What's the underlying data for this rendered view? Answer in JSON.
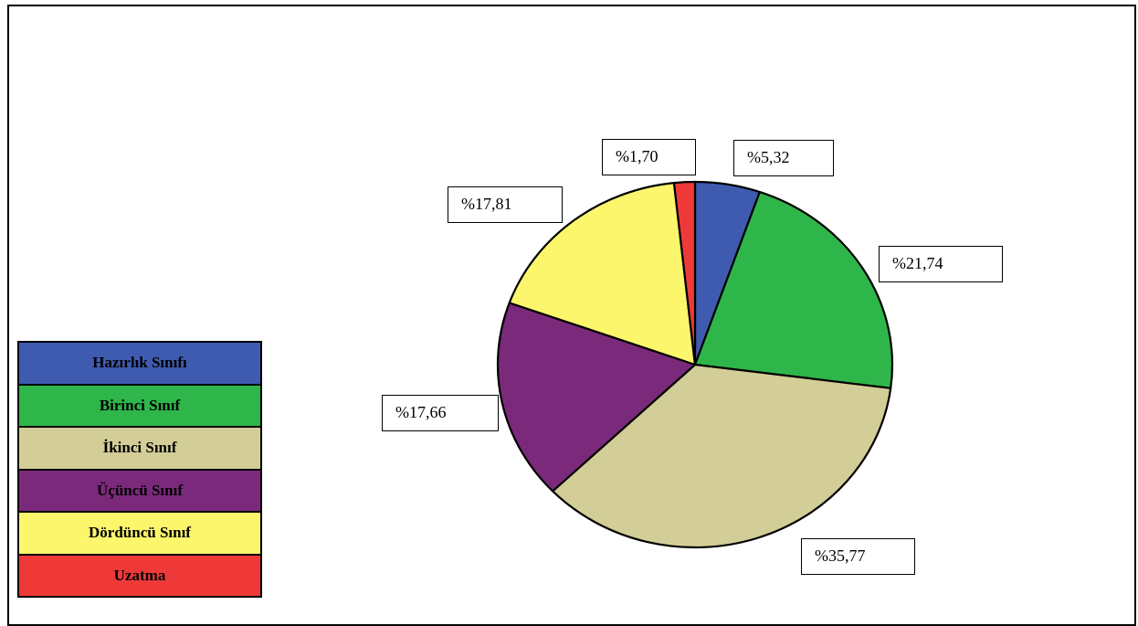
{
  "chart_data": {
    "type": "pie",
    "title": "",
    "slices": [
      {
        "name": "Hazırlık Sınıfı",
        "value": 5.32,
        "label": "%5,32",
        "color": "#3f5bb0"
      },
      {
        "name": "Birinci Sınıf",
        "value": 21.74,
        "label": "%21,74",
        "color": "#2fb64a"
      },
      {
        "name": "İkinci Sınıf",
        "value": 35.77,
        "label": "%35,77",
        "color": "#d3cd97"
      },
      {
        "name": "Üçüncü Sınıf",
        "value": 17.66,
        "label": "%17,66",
        "color": "#7b2a7b"
      },
      {
        "name": "Dördüncü Sınıf",
        "value": 17.81,
        "label": "%17,81",
        "color": "#fbf66c"
      },
      {
        "name": "Uzatma",
        "value": 1.7,
        "label": "%1,70",
        "color": "#ef3939"
      }
    ],
    "legend": "left"
  },
  "legend": {
    "items": [
      {
        "label": "Hazırlık Sınıfı",
        "color": "#3f5bb0",
        "text_color": "#000000"
      },
      {
        "label": "Birinci Sınıf",
        "color": "#2fb64a",
        "text_color": "#000000"
      },
      {
        "label": "İkinci Sınıf",
        "color": "#d3cd97",
        "text_color": "#000000"
      },
      {
        "label": "Üçüncü Sınıf",
        "color": "#7b2a7b",
        "text_color": "#000000"
      },
      {
        "label": "Dördüncü Sınıf",
        "color": "#fbf66c",
        "text_color": "#000000"
      },
      {
        "label": "Uzatma",
        "color": "#ef3939",
        "text_color": "#000000"
      }
    ]
  }
}
